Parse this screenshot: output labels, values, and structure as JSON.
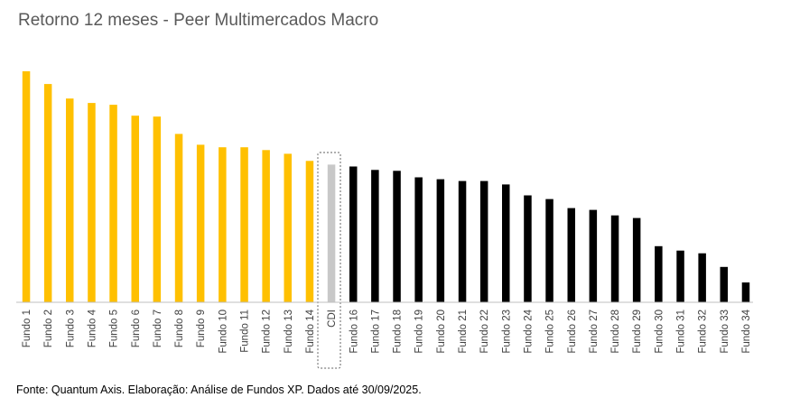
{
  "title": "Retorno 12 meses - Peer Multimercados Macro",
  "source": "Fonte: Quantum Axis. Elaboração: Análise de Fundos XP. Dados até 30/09/2025.",
  "colors": {
    "above_cdi": "#FFC000",
    "cdi": "#C8C8C8",
    "below_cdi": "#000000",
    "highlight_border": "#7F7F7F"
  },
  "chart_data": {
    "type": "bar",
    "title": "Retorno 12 meses - Peer Multimercados Macro",
    "xlabel": "",
    "ylabel": "",
    "grid": false,
    "legend": "none",
    "highlighted_category": "CDI",
    "ylim": [
      0,
      100
    ],
    "categories": [
      "Fundo 1",
      "Fundo 2",
      "Fundo 3",
      "Fundo 4",
      "Fundo 5",
      "Fundo 6",
      "Fundo 7",
      "Fundo 8",
      "Fundo 9",
      "Fundo 10",
      "Fundo 11",
      "Fundo 12",
      "Fundo 13",
      "Fundo 14",
      "CDI",
      "Fundo 16",
      "Fundo 17",
      "Fundo 18",
      "Fundo 19",
      "Fundo 20",
      "Fundo 21",
      "Fundo 22",
      "Fundo 23",
      "Fundo 24",
      "Fundo 25",
      "Fundo 26",
      "Fundo 27",
      "Fundo 28",
      "Fundo 29",
      "Fundo 30",
      "Fundo 31",
      "Fundo 32",
      "Fundo 33",
      "Fundo 34"
    ],
    "values": [
      100,
      94.5,
      88.2,
      86.3,
      85.5,
      80.8,
      80.4,
      72.9,
      68.2,
      67.1,
      67.1,
      65.9,
      64.3,
      61.2,
      59.6,
      58.8,
      57.3,
      56.9,
      54.1,
      53.3,
      52.5,
      52.5,
      51.0,
      46.3,
      44.7,
      40.8,
      40.0,
      37.6,
      36.5,
      24.3,
      22.4,
      21.2,
      15.3,
      8.6
    ],
    "bar_groups": [
      "above_cdi",
      "above_cdi",
      "above_cdi",
      "above_cdi",
      "above_cdi",
      "above_cdi",
      "above_cdi",
      "above_cdi",
      "above_cdi",
      "above_cdi",
      "above_cdi",
      "above_cdi",
      "above_cdi",
      "above_cdi",
      "cdi",
      "below_cdi",
      "below_cdi",
      "below_cdi",
      "below_cdi",
      "below_cdi",
      "below_cdi",
      "below_cdi",
      "below_cdi",
      "below_cdi",
      "below_cdi",
      "below_cdi",
      "below_cdi",
      "below_cdi",
      "below_cdi",
      "below_cdi",
      "below_cdi",
      "below_cdi",
      "below_cdi",
      "below_cdi"
    ]
  }
}
